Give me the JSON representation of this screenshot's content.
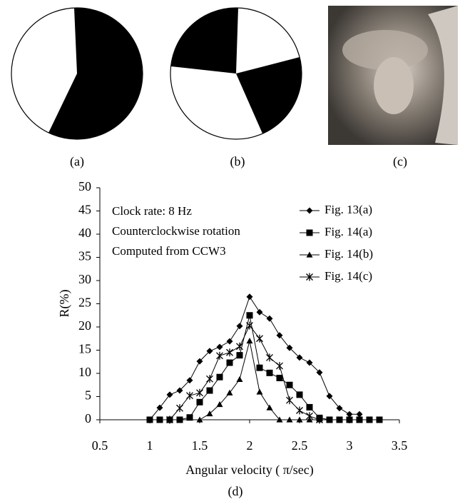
{
  "panels": [
    {
      "label": "(a)"
    },
    {
      "label": "(b)"
    },
    {
      "label": "(c)"
    }
  ],
  "chart_data": {
    "type": "line",
    "panel_label": "(d)",
    "xlabel": "Angular velocity ( π/sec)",
    "ylabel": "R(%)",
    "annotations": [
      "Clock rate: 8 Hz",
      "Counterclockwise rotation",
      "Computed from CCW3"
    ],
    "xlim": [
      0.5,
      3.5
    ],
    "xticks": [
      0.5,
      1,
      1.5,
      2,
      2.5,
      3,
      3.5
    ],
    "ylim": [
      0,
      50
    ],
    "yticks": [
      0,
      5,
      10,
      15,
      20,
      25,
      30,
      35,
      40,
      45,
      50
    ],
    "grid": false,
    "legend": "upper right",
    "series": [
      {
        "name": "Fig. 13(a)",
        "color": "#000000",
        "marker": "diamond",
        "x": [
          1.0,
          1.1,
          1.2,
          1.3,
          1.4,
          1.5,
          1.6,
          1.7,
          1.8,
          1.9,
          2.0,
          2.1,
          2.2,
          2.3,
          2.4,
          2.5,
          2.6,
          2.7,
          2.8,
          2.9,
          3.0,
          3.1
        ],
        "values": [
          0,
          2.6,
          5.4,
          6.3,
          8.5,
          12.6,
          14.8,
          15.7,
          16.9,
          20.2,
          26.5,
          23.2,
          21.8,
          18.2,
          15.5,
          13.4,
          12.3,
          10.2,
          5.1,
          2.5,
          1.2,
          1.2
        ]
      },
      {
        "name": "Fig. 14(a)",
        "color": "#000000",
        "marker": "square",
        "x": [
          1.0,
          1.1,
          1.2,
          1.3,
          1.4,
          1.5,
          1.6,
          1.7,
          1.8,
          1.9,
          2.0,
          2.1,
          2.2,
          2.3,
          2.4,
          2.5,
          2.6,
          2.7,
          2.8,
          2.9,
          3.0,
          3.1,
          3.2,
          3.3
        ],
        "values": [
          0,
          0,
          0,
          0,
          0.5,
          3.8,
          6.3,
          9.2,
          12.3,
          13.9,
          22.5,
          11.2,
          10.1,
          9.0,
          7.5,
          5.4,
          2.7,
          0.4,
          0,
          0,
          0,
          0,
          0,
          0
        ]
      },
      {
        "name": "Fig. 14(b)",
        "color": "#000000",
        "marker": "triangle",
        "x": [
          1.5,
          1.6,
          1.7,
          1.8,
          1.9,
          2.0,
          2.1,
          2.2,
          2.3,
          2.4,
          2.5,
          2.6,
          2.7
        ],
        "values": [
          0,
          1.3,
          3.3,
          5.8,
          8.7,
          17.0,
          6.0,
          2.6,
          0,
          0,
          0,
          0,
          0
        ]
      },
      {
        "name": "Fig. 14(c)",
        "color": "#000000",
        "marker": "star",
        "x": [
          1.2,
          1.3,
          1.4,
          1.5,
          1.6,
          1.7,
          1.8,
          1.9,
          2.0,
          2.1,
          2.2,
          2.3,
          2.4,
          2.5,
          2.6,
          2.7
        ],
        "values": [
          0,
          2.5,
          5.2,
          5.8,
          8.8,
          13.8,
          14.5,
          15.8,
          20.3,
          17.5,
          13.4,
          11.6,
          4.2,
          2.0,
          0.8,
          0
        ]
      }
    ]
  }
}
